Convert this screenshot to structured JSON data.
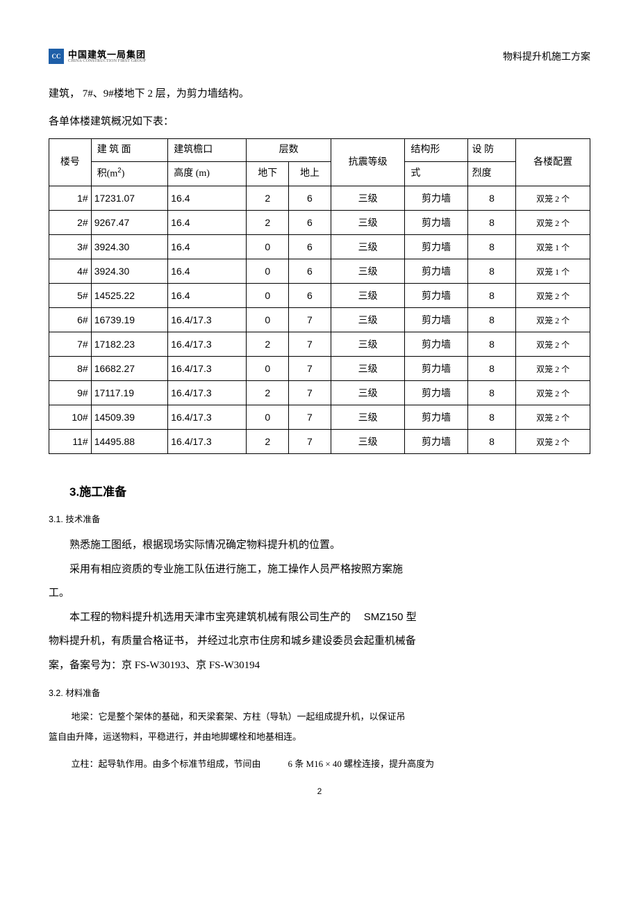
{
  "header": {
    "logo_cn": "中国建筑一局集团",
    "logo_en": "CHINA CONSTRUCTION FIRST GROUP",
    "right": "物料提升机施工方案"
  },
  "intro": {
    "line1": "建筑， 7#、9#楼地下 2 层，为剪力墙结构。",
    "line2": "各单体楼建筑概况如下表："
  },
  "table": {
    "head": {
      "c1a": "楼号",
      "c2a": "建 筑 面",
      "c2b": "积(m",
      "c2sup": "2",
      "c2c": ")",
      "c3a": "建筑檐口",
      "c3b": "高度 (m)",
      "c4": "层数",
      "c4a": "地下",
      "c4b": "地上",
      "c5": "抗震等级",
      "c6a": "结构形",
      "c6b": "式",
      "c7a": "设 防",
      "c7b": "烈度",
      "c8": "各楼配置"
    },
    "rows": [
      {
        "no": "1#",
        "area": "17231.07",
        "h": "16.4",
        "bg": "2",
        "ag": "6",
        "seis": "三级",
        "struct": "剪力墙",
        "deg": "8",
        "cfg": "双笼 2 个"
      },
      {
        "no": "2#",
        "area": "9267.47",
        "h": "16.4",
        "bg": "2",
        "ag": "6",
        "seis": "三级",
        "struct": "剪力墙",
        "deg": "8",
        "cfg": "双笼 2 个"
      },
      {
        "no": "3#",
        "area": "3924.30",
        "h": "16.4",
        "bg": "0",
        "ag": "6",
        "seis": "三级",
        "struct": "剪力墙",
        "deg": "8",
        "cfg": "双笼 1 个"
      },
      {
        "no": "4#",
        "area": "3924.30",
        "h": "16.4",
        "bg": "0",
        "ag": "6",
        "seis": "三级",
        "struct": "剪力墙",
        "deg": "8",
        "cfg": "双笼 1 个"
      },
      {
        "no": "5#",
        "area": "14525.22",
        "h": "16.4",
        "bg": "0",
        "ag": "6",
        "seis": "三级",
        "struct": "剪力墙",
        "deg": "8",
        "cfg": "双笼 2 个"
      },
      {
        "no": "6#",
        "area": "16739.19",
        "h": "16.4/17.3",
        "bg": "0",
        "ag": "7",
        "seis": "三级",
        "struct": "剪力墙",
        "deg": "8",
        "cfg": "双笼 2 个"
      },
      {
        "no": "7#",
        "area": "17182.23",
        "h": "16.4/17.3",
        "bg": "2",
        "ag": "7",
        "seis": "三级",
        "struct": "剪力墙",
        "deg": "8",
        "cfg": "双笼 2 个"
      },
      {
        "no": "8#",
        "area": "16682.27",
        "h": "16.4/17.3",
        "bg": "0",
        "ag": "7",
        "seis": "三级",
        "struct": "剪力墙",
        "deg": "8",
        "cfg": "双笼 2 个"
      },
      {
        "no": "9#",
        "area": "17117.19",
        "h": "16.4/17.3",
        "bg": "2",
        "ag": "7",
        "seis": "三级",
        "struct": "剪力墙",
        "deg": "8",
        "cfg": "双笼 2 个"
      },
      {
        "no": "10#",
        "area": "14509.39",
        "h": "16.4/17.3",
        "bg": "0",
        "ag": "7",
        "seis": "三级",
        "struct": "剪力墙",
        "deg": "8",
        "cfg": "双笼 2 个"
      },
      {
        "no": "11#",
        "area": "14495.88",
        "h": "16.4/17.3",
        "bg": "2",
        "ag": "7",
        "seis": "三级",
        "struct": "剪力墙",
        "deg": "8",
        "cfg": "双笼 2 个"
      }
    ]
  },
  "section3": {
    "title": "3.施工准备",
    "s31": "3.1. 技术准备",
    "p1": "熟悉施工图纸，根据现场实际情况确定物料提升机的位置。",
    "p2": "采用有相应资质的专业施工队伍进行施工，施工操作人员严格按照方案施",
    "p2b": "工。",
    "p3a": "本工程的物料提升机选用天津市宝亮建筑机械有限公司生产的",
    "p3b": "SMZ150 型",
    "p4": "物料提升机，有质量合格证书， 并经过北京市住房和城乡建设委员会起重机械备",
    "p5": "案，备案号为：京 FS-W30193、京 FS-W30194",
    "s32": "3.2. 材料准备",
    "p6": "地梁：它是整个架体的基础，和天梁套架、方柱（导轨）一起组成提升机，以保证吊",
    "p7": "篮自由升降，运送物料，平稳进行，并由地脚螺栓和地基相连。",
    "p8a": "立柱：起导轨作用。由多个标准节组成，节间由",
    "p8b": "6 条 M16 × 40 螺栓连接，提升高度为"
  },
  "pagenum": "2"
}
